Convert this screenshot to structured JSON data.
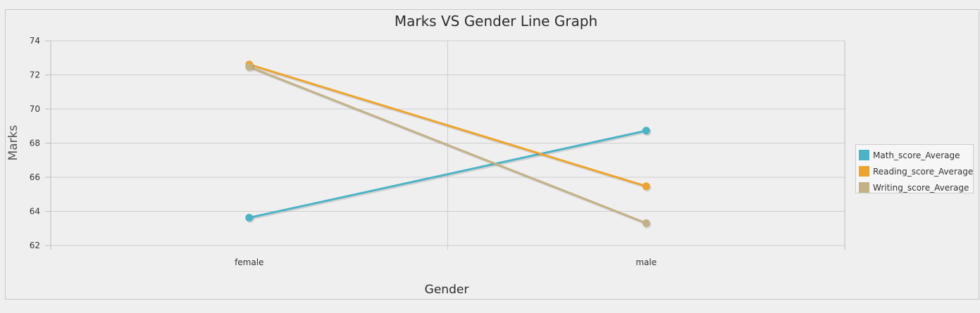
{
  "chart_data": {
    "type": "line",
    "title": "Marks VS Gender Line Graph",
    "xlabel": "Gender",
    "ylabel": "Marks",
    "categories": [
      "female",
      "male"
    ],
    "ylim": [
      62,
      74
    ],
    "yticks": [
      62,
      64,
      66,
      68,
      70,
      72,
      74
    ],
    "grid": true,
    "legend_position": "right",
    "series": [
      {
        "name": "Math_score_Average",
        "values": [
          63.63,
          68.73
        ],
        "color": "#4bb3c6"
      },
      {
        "name": "Reading_score_Average",
        "values": [
          72.61,
          65.47
        ],
        "color": "#eda42e"
      },
      {
        "name": "Writing_score_Average",
        "values": [
          72.47,
          63.31
        ],
        "color": "#c2b285"
      }
    ]
  }
}
